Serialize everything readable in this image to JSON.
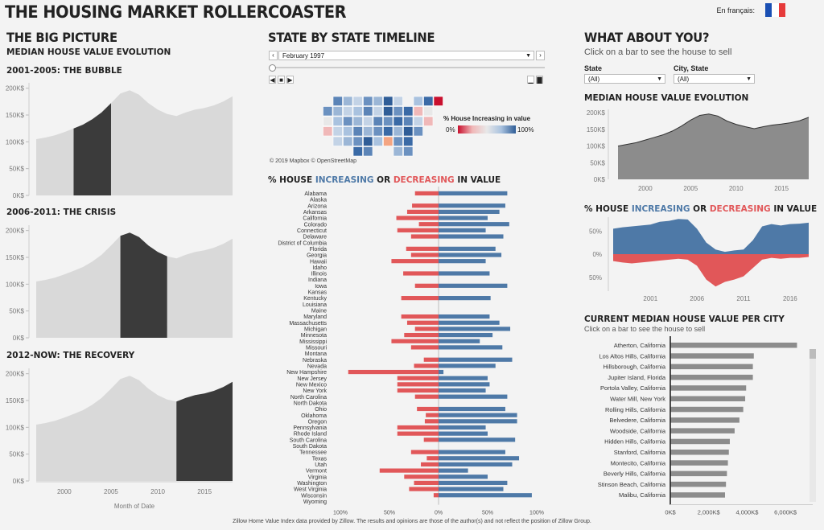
{
  "header": {
    "title": "THE HOUSING MARKET ROLLERCOASTER",
    "lang_label": "En français:"
  },
  "left": {
    "title": "THE BIG PICTURE",
    "subtitle": "MEDIAN HOUSE VALUE EVOLUTION",
    "panels": [
      "2001-2005: THE BUBBLE",
      "2006-2011: THE CRISIS",
      "2012-NOW: THE RECOVERY"
    ],
    "xlabel": "Month of Date"
  },
  "middle": {
    "title": "STATE BY STATE TIMELINE",
    "date_value": "February 1997",
    "legend_title": "% House Increasing in value",
    "legend_min": "0%",
    "legend_max": "100%",
    "map_credit": "© 2019 Mapbox © OpenStreetMap",
    "bars_title": {
      "a": "% HOUSE ",
      "b": "INCREASING",
      "c": " OR ",
      "d": "DECREASING",
      "e": " IN VALUE"
    }
  },
  "right": {
    "title": "WHAT ABOUT YOU?",
    "hint": "Click on a bar to see the house to sell",
    "state_label": "State",
    "state_value": "(All)",
    "city_label": "City, State",
    "city_value": "(All)",
    "evo_title": "MEDIAN HOUSE VALUE EVOLUTION",
    "incdec_title": {
      "a": "% HOUSE ",
      "b": "INCREASING",
      "c": " OR ",
      "d": "DECREASING",
      "e": " IN VALUE"
    },
    "city_title": "CURRENT MEDIAN HOUSE VALUE PER CITY",
    "city_hint": "Click on a bar to see the house to sell"
  },
  "footer": "Zillow Home Value Index data provided by Zillow. The results and opinions are those of the author(s) and not reflect the position of Zillow Group.",
  "colors": {
    "increase": "#4e79a7",
    "decrease": "#e15759",
    "dark": "#3b3b3b",
    "light": "#d9d9d9",
    "gray": "#8c8c8c"
  },
  "chart_data": [
    {
      "type": "area",
      "id": "median_evolution",
      "x": [
        1997,
        1998,
        1999,
        2000,
        2001,
        2002,
        2003,
        2004,
        2005,
        2006,
        2007,
        2008,
        2009,
        2010,
        2011,
        2012,
        2013,
        2014,
        2015,
        2016,
        2017,
        2018
      ],
      "values": [
        105,
        108,
        112,
        118,
        125,
        132,
        142,
        155,
        172,
        190,
        196,
        188,
        172,
        160,
        152,
        148,
        155,
        160,
        163,
        168,
        175,
        185
      ],
      "yticks": [
        "0K$",
        "50K$",
        "100K$",
        "150K$",
        "200K$"
      ],
      "xticks": [
        "2000",
        "2005",
        "2010",
        "2015"
      ],
      "highlights": [
        [
          2001,
          2005
        ],
        [
          2006,
          2011
        ],
        [
          2012,
          2018
        ]
      ],
      "ylim": [
        0,
        210
      ],
      "xlabel": "Month of Date"
    },
    {
      "type": "bar",
      "id": "state_inc_dec",
      "categories": [
        "Alabama",
        "Alaska",
        "Arizona",
        "Arkansas",
        "California",
        "Colorado",
        "Connecticut",
        "Delaware",
        "District of Columbia",
        "Florida",
        "Georgia",
        "Hawaii",
        "Idaho",
        "Illinois",
        "Indiana",
        "Iowa",
        "Kansas",
        "Kentucky",
        "Louisiana",
        "Maine",
        "Maryland",
        "Massachusetts",
        "Michigan",
        "Minnesota",
        "Mississippi",
        "Missouri",
        "Montana",
        "Nebraska",
        "Nevada",
        "New Hampshire",
        "New Jersey",
        "New Mexico",
        "New York",
        "North Carolina",
        "North Dakota",
        "Ohio",
        "Oklahoma",
        "Oregon",
        "Pennsylvania",
        "Rhode Island",
        "South Carolina",
        "South Dakota",
        "Tennessee",
        "Texas",
        "Utah",
        "Vermont",
        "Virginia",
        "Washington",
        "West Virginia",
        "Wisconsin",
        "Wyoming"
      ],
      "increasing": [
        70,
        0,
        68,
        62,
        50,
        72,
        48,
        66,
        0,
        58,
        64,
        48,
        0,
        52,
        0,
        70,
        0,
        53,
        0,
        0,
        52,
        62,
        73,
        55,
        42,
        65,
        0,
        75,
        58,
        5,
        50,
        52,
        48,
        70,
        0,
        68,
        80,
        80,
        48,
        50,
        78,
        0,
        68,
        82,
        75,
        30,
        50,
        70,
        66,
        95,
        0
      ],
      "decreasing": [
        24,
        0,
        27,
        32,
        43,
        20,
        42,
        28,
        0,
        33,
        28,
        48,
        0,
        36,
        0,
        24,
        0,
        38,
        0,
        0,
        38,
        32,
        24,
        35,
        48,
        28,
        0,
        15,
        25,
        92,
        42,
        42,
        42,
        24,
        0,
        22,
        13,
        14,
        42,
        42,
        15,
        0,
        28,
        12,
        18,
        60,
        35,
        25,
        30,
        5,
        0
      ],
      "xticks": [
        "100%",
        "50%",
        "0%",
        "50%",
        "100%"
      ],
      "xlim": [
        -100,
        100
      ]
    },
    {
      "type": "area",
      "id": "right_median_evolution",
      "x": [
        1997,
        1998,
        1999,
        2000,
        2001,
        2002,
        2003,
        2004,
        2005,
        2006,
        2007,
        2008,
        2009,
        2010,
        2011,
        2012,
        2013,
        2014,
        2015,
        2016,
        2017,
        2018
      ],
      "values": [
        100,
        105,
        110,
        118,
        126,
        134,
        145,
        160,
        178,
        192,
        196,
        190,
        175,
        165,
        158,
        152,
        158,
        163,
        166,
        170,
        176,
        186
      ],
      "yticks": [
        "0K$",
        "50K$",
        "100K$",
        "150K$",
        "200K$"
      ],
      "xticks": [
        "2000",
        "2005",
        "2010",
        "2015"
      ],
      "ylim": [
        0,
        210
      ]
    },
    {
      "type": "area",
      "id": "right_inc_dec",
      "x": [
        1997,
        1998,
        1999,
        2000,
        2001,
        2002,
        2003,
        2004,
        2005,
        2006,
        2007,
        2008,
        2009,
        2010,
        2011,
        2012,
        2013,
        2014,
        2015,
        2016,
        2017,
        2018
      ],
      "increasing": [
        55,
        58,
        60,
        62,
        64,
        70,
        72,
        76,
        75,
        55,
        25,
        10,
        5,
        8,
        10,
        30,
        60,
        65,
        62,
        65,
        66,
        68
      ],
      "decreasing": [
        15,
        18,
        20,
        18,
        16,
        14,
        12,
        10,
        12,
        25,
        55,
        70,
        60,
        55,
        48,
        30,
        12,
        8,
        10,
        8,
        8,
        6
      ],
      "yticks": [
        "50%",
        "0%",
        "50%"
      ],
      "xticks": [
        "2001",
        "2006",
        "2011",
        "2016"
      ],
      "ylim": [
        -80,
        80
      ]
    },
    {
      "type": "bar",
      "id": "city_values",
      "categories": [
        "Atherton, California",
        "Los Altos Hills, California",
        "Hillsborough, California",
        "Jupiter Island, Florida",
        "Portola Valley, California",
        "Water Mill, New York",
        "Rolling Hills, California",
        "Belvedere, California",
        "Woodside, California",
        "Hidden Hills, California",
        "Stanford, California",
        "Montecito, California",
        "Beverly Hills, California",
        "Stinson Beach, California",
        "Malibu, California"
      ],
      "values": [
        6600,
        4350,
        4300,
        4300,
        3950,
        3900,
        3800,
        3600,
        3350,
        3100,
        3050,
        3000,
        2950,
        2900,
        2850
      ],
      "xticks": [
        "0K$",
        "2,000K$",
        "4,000K$",
        "6,000K$"
      ],
      "xlim": [
        0,
        7000
      ]
    }
  ]
}
